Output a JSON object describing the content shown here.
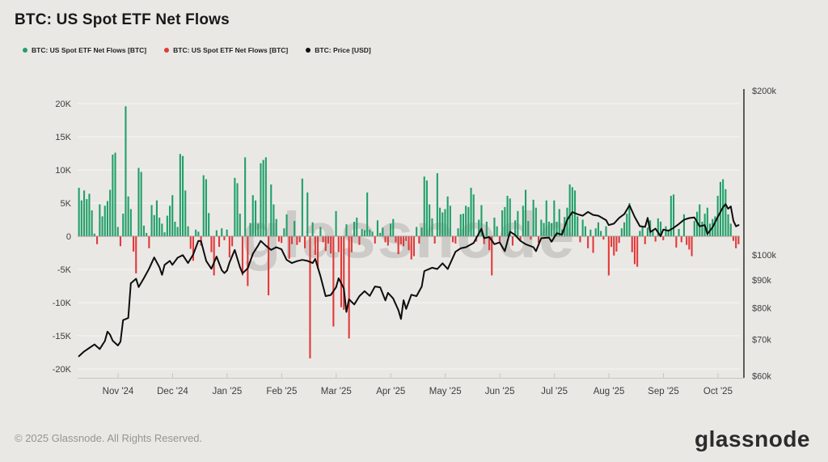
{
  "header": {
    "title": "BTC: US Spot ETF Net Flows"
  },
  "legend": [
    {
      "label": "BTC: US Spot ETF Net Flows [BTC]",
      "color": "#21a069",
      "series": "inflows"
    },
    {
      "label": "BTC: US Spot ETF Net Flows [BTC]",
      "color": "#e13a3a",
      "series": "outflows"
    },
    {
      "label": "BTC: Price [USD]",
      "color": "#111111",
      "series": "price"
    }
  ],
  "watermark": "glassnode",
  "footer": {
    "copyright": "© 2025 Glassnode. All Rights Reserved.",
    "brand": "glassnode"
  },
  "colors": {
    "background": "#eae8e5",
    "gridline": "#f4f3f0",
    "zero_line": "#98968f",
    "axis_text": "#3d3d3d",
    "bottom_axis": "#c8c6c3",
    "right_axis_line": "#3a3a3a",
    "bar_positive": "#21a069",
    "bar_negative": "#e13a3a",
    "price_line": "#0d0d0d",
    "watermark": "#c9c7c4"
  },
  "chart_data": {
    "type": "bar",
    "title": "BTC: US Spot ETF Net Flows",
    "x_axis": {
      "labels": [
        "Nov '24",
        "Dec '24",
        "Jan '25",
        "Feb '25",
        "Mar '25",
        "Apr '25",
        "May '25",
        "Jun '25",
        "Jul '25",
        "Aug '25",
        "Sep '25",
        "Oct '25"
      ]
    },
    "flow_axis": {
      "unit": "BTC",
      "scale": "linear",
      "range_k": [
        -20,
        20
      ],
      "ticks_k": [
        20,
        15,
        10,
        5,
        0,
        -5,
        -10,
        -15,
        -20
      ],
      "tick_labels": [
        "20K",
        "15K",
        "10K",
        "5K",
        "0",
        "-5K",
        "-10K",
        "-15K",
        "-20K"
      ],
      "legend_position": "top-left",
      "grid": "on"
    },
    "price_axis": {
      "unit": "USD",
      "scale": "log",
      "ticks_k": [
        200,
        100,
        90,
        80,
        70,
        60
      ],
      "tick_labels": [
        "$200k",
        "$100k",
        "$90k",
        "$80k",
        "$70k",
        "$60k"
      ]
    },
    "series": [
      {
        "name": "BTC: US Spot ETF Net Flows [BTC]",
        "type": "bar",
        "units": "thousand BTC per day",
        "values": [
          7.3,
          5.4,
          6.9,
          5.6,
          6.4,
          3.9,
          0.4,
          -1.2,
          4.8,
          3.0,
          4.6,
          5.3,
          7.0,
          12.3,
          12.6,
          1.4,
          -1.5,
          3.4,
          19.6,
          6.0,
          4.1,
          -2.3,
          -5.6,
          10.3,
          9.7,
          1.6,
          0.5,
          -1.8,
          4.7,
          3.2,
          5.4,
          2.8,
          1.9,
          0.6,
          3.1,
          4.6,
          6.2,
          2.2,
          1.4,
          12.4,
          12.1,
          6.9,
          1.5,
          -1.9,
          -3.7,
          1.0,
          0.7,
          -1.4,
          9.2,
          8.6,
          3.5,
          -2.4,
          -5.9,
          0.9,
          -1.6,
          1.2,
          -0.6,
          1.0,
          -3.2,
          -1.5,
          8.8,
          8.0,
          3.4,
          -5.9,
          11.9,
          -7.5,
          2.0,
          6.2,
          5.4,
          1.9,
          11.0,
          11.5,
          11.9,
          -8.9,
          7.8,
          4.8,
          2.6,
          -0.8,
          -1.0,
          1.2,
          3.3,
          -3.4,
          -1.2,
          2.3,
          -1.3,
          -0.9,
          8.7,
          -1.8,
          6.6,
          -18.4,
          2.1,
          -2.8,
          -4.9,
          1.4,
          -0.9,
          -2.2,
          -1.1,
          -2.6,
          -13.6,
          3.8,
          -2.4,
          -10.7,
          -11.1,
          1.8,
          -15.4,
          -2.4,
          2.2,
          2.8,
          -1.3,
          1.1,
          0.9,
          6.6,
          1.0,
          0.7,
          -1.1,
          2.4,
          0.5,
          1.3,
          -0.9,
          -1.4,
          1.9,
          2.6,
          -0.9,
          -2.7,
          -1.2,
          -1.5,
          -0.7,
          -2.1,
          -3.5,
          -3.0,
          1.4,
          -1.1,
          1.3,
          9.0,
          8.4,
          4.8,
          2.7,
          -1.1,
          9.5,
          4.3,
          3.6,
          4.1,
          6.0,
          4.6,
          -0.9,
          -1.1,
          1.2,
          3.3,
          3.4,
          4.6,
          4.4,
          7.3,
          6.3,
          -0.8,
          2.5,
          4.7,
          -1.2,
          2.2,
          -2.1,
          -5.9,
          2.8,
          1.5,
          -1.0,
          3.9,
          4.4,
          6.1,
          5.7,
          -1.4,
          2.4,
          3.8,
          -0.7,
          4.6,
          7.0,
          2.3,
          -0.5,
          5.5,
          4.3,
          -1.0,
          2.5,
          2.0,
          5.4,
          2.2,
          2.0,
          5.4,
          2.2,
          4.1,
          1.0,
          2.9,
          4.3,
          7.8,
          7.4,
          6.9,
          3.0,
          -0.9,
          2.5,
          1.5,
          -1.8,
          1.0,
          -2.5,
          1.2,
          2.1,
          0.8,
          -0.5,
          1.5,
          -5.9,
          -1.6,
          -2.9,
          -2.3,
          -1.0,
          1.2,
          2.1,
          3.4,
          5.0,
          -2.4,
          -4.2,
          -4.6,
          0.8,
          1.4,
          -1.2,
          1.3,
          2.4,
          1.0,
          -0.8,
          2.7,
          2.2,
          -0.6,
          1.5,
          1.0,
          6.1,
          6.3,
          -1.7,
          1.1,
          -0.9,
          3.3,
          -1.3,
          -2.0,
          -3.0,
          2.3,
          3.7,
          4.8,
          2.2,
          3.4,
          4.3,
          1.9,
          2.6,
          3.0,
          6.1,
          8.2,
          8.6,
          7.1,
          3.3,
          1.9,
          -0.7,
          -1.8,
          -1.2
        ]
      },
      {
        "name": "BTC: Price [USD]",
        "type": "line",
        "units": "thousand USD",
        "points": [
          [
            0,
            65.2
          ],
          [
            2,
            66.5
          ],
          [
            4,
            67.5
          ],
          [
            6,
            68.5
          ],
          [
            8,
            67.2
          ],
          [
            10,
            69.5
          ],
          [
            11,
            72.3
          ],
          [
            12,
            71.4
          ],
          [
            13,
            69.6
          ],
          [
            15,
            68.2
          ],
          [
            16,
            69.3
          ],
          [
            17,
            75.9
          ],
          [
            19,
            76.6
          ],
          [
            20,
            88.7
          ],
          [
            22,
            90.4
          ],
          [
            23,
            87.3
          ],
          [
            25,
            90.6
          ],
          [
            27,
            94.3
          ],
          [
            29,
            98.9
          ],
          [
            31,
            94.9
          ],
          [
            32,
            91.9
          ],
          [
            33,
            95.9
          ],
          [
            35,
            97.5
          ],
          [
            36,
            95.9
          ],
          [
            38,
            98.8
          ],
          [
            40,
            99.9
          ],
          [
            42,
            96.6
          ],
          [
            44,
            100.1
          ],
          [
            46,
            106.1
          ],
          [
            47,
            106.0
          ],
          [
            49,
            97.5
          ],
          [
            51,
            94.3
          ],
          [
            53,
            99.3
          ],
          [
            55,
            93.7
          ],
          [
            56,
            92.6
          ],
          [
            57,
            93.6
          ],
          [
            58,
            96.9
          ],
          [
            60,
            102.1
          ],
          [
            62,
            95.0
          ],
          [
            63,
            92.5
          ],
          [
            65,
            94.5
          ],
          [
            67,
            100.5
          ],
          [
            69,
            104.0
          ],
          [
            70,
            106.1
          ],
          [
            72,
            103.9
          ],
          [
            74,
            102.1
          ],
          [
            76,
            103.3
          ],
          [
            78,
            102.4
          ],
          [
            80,
            97.9
          ],
          [
            82,
            96.6
          ],
          [
            84,
            97.4
          ],
          [
            86,
            97.9
          ],
          [
            88,
            97.5
          ],
          [
            90,
            96.6
          ],
          [
            91,
            98.3
          ],
          [
            93,
            91.4
          ],
          [
            95,
            84.0
          ],
          [
            97,
            84.4
          ],
          [
            99,
            87.2
          ],
          [
            100,
            90.6
          ],
          [
            102,
            86.8
          ],
          [
            103,
            78.6
          ],
          [
            104,
            82.9
          ],
          [
            106,
            81.1
          ],
          [
            108,
            84.0
          ],
          [
            110,
            85.8
          ],
          [
            112,
            84.1
          ],
          [
            114,
            87.5
          ],
          [
            116,
            87.2
          ],
          [
            118,
            82.5
          ],
          [
            119,
            85.2
          ],
          [
            121,
            83.2
          ],
          [
            123,
            79.2
          ],
          [
            124,
            76.3
          ],
          [
            125,
            82.6
          ],
          [
            126,
            79.6
          ],
          [
            128,
            84.5
          ],
          [
            130,
            84.0
          ],
          [
            132,
            87.5
          ],
          [
            133,
            93.4
          ],
          [
            136,
            94.7
          ],
          [
            138,
            94.2
          ],
          [
            140,
            96.5
          ],
          [
            142,
            94.2
          ],
          [
            145,
            101.3
          ],
          [
            147,
            102.8
          ],
          [
            149,
            103.3
          ],
          [
            152,
            105.2
          ],
          [
            155,
            111.7
          ],
          [
            156,
            107.3
          ],
          [
            158,
            107.8
          ],
          [
            160,
            104.6
          ],
          [
            162,
            105.4
          ],
          [
            164,
            101.6
          ],
          [
            166,
            110.3
          ],
          [
            168,
            108.7
          ],
          [
            170,
            106.1
          ],
          [
            172,
            104.6
          ],
          [
            175,
            103.3
          ],
          [
            176,
            101.6
          ],
          [
            178,
            107.3
          ],
          [
            181,
            107.6
          ],
          [
            182,
            105.7
          ],
          [
            184,
            109.6
          ],
          [
            186,
            108.9
          ],
          [
            188,
            115.9
          ],
          [
            190,
            119.8
          ],
          [
            192,
            118.7
          ],
          [
            194,
            118.0
          ],
          [
            196,
            119.9
          ],
          [
            198,
            118.4
          ],
          [
            200,
            118.0
          ],
          [
            203,
            115.8
          ],
          [
            204,
            113.4
          ],
          [
            206,
            114.1
          ],
          [
            208,
            116.9
          ],
          [
            210,
            118.8
          ],
          [
            212,
            123.3
          ],
          [
            214,
            117.4
          ],
          [
            216,
            112.9
          ],
          [
            218,
            112.5
          ],
          [
            219,
            116.9
          ],
          [
            220,
            110.1
          ],
          [
            222,
            111.7
          ],
          [
            224,
            108.2
          ],
          [
            225,
            111.3
          ],
          [
            227,
            110.7
          ],
          [
            229,
            112.1
          ],
          [
            231,
            113.9
          ],
          [
            233,
            116.0
          ],
          [
            235,
            116.8
          ],
          [
            237,
            117.1
          ],
          [
            239,
            112.8
          ],
          [
            241,
            113.4
          ],
          [
            242,
            109.2
          ],
          [
            244,
            112.4
          ],
          [
            246,
            117.4
          ],
          [
            248,
            122.2
          ],
          [
            249,
            123.9
          ],
          [
            250,
            121.5
          ],
          [
            251,
            122.7
          ],
          [
            252,
            115.5
          ],
          [
            253,
            112.8
          ],
          [
            254,
            113.4
          ]
        ]
      }
    ]
  }
}
